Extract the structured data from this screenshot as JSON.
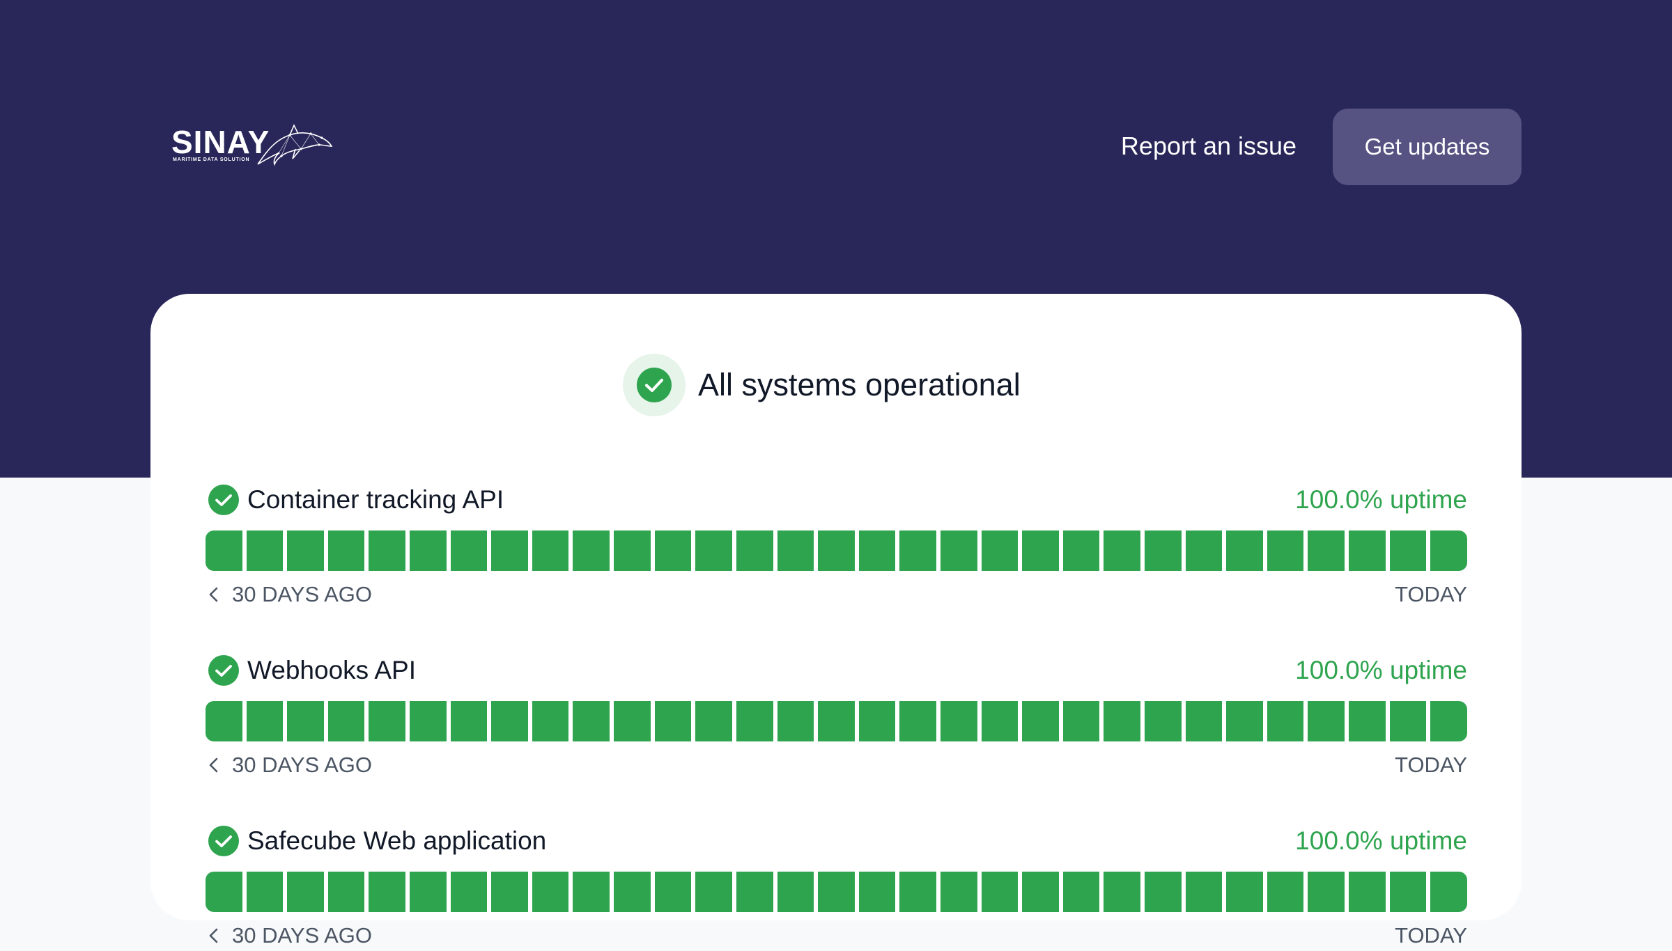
{
  "header": {
    "logo_text": "SINAY",
    "logo_tagline": "MARITIME DATA SOLUTION",
    "report_label": "Report an issue",
    "updates_label": "Get updates"
  },
  "summary": {
    "title": "All systems operational"
  },
  "colors": {
    "header_bg": "#292659",
    "operational": "#2fa44f",
    "button_bg": "#565383"
  },
  "components": [
    {
      "name": "Container tracking API",
      "uptime": "100.0% uptime",
      "status": "operational",
      "start_label": "30 DAYS AGO",
      "end_label": "TODAY",
      "days": [
        "operational",
        "operational",
        "operational",
        "operational",
        "operational",
        "operational",
        "operational",
        "operational",
        "operational",
        "operational",
        "operational",
        "operational",
        "operational",
        "operational",
        "operational",
        "operational",
        "operational",
        "operational",
        "operational",
        "operational",
        "operational",
        "operational",
        "operational",
        "operational",
        "operational",
        "operational",
        "operational",
        "operational",
        "operational",
        "operational",
        "operational"
      ]
    },
    {
      "name": "Webhooks API",
      "uptime": "100.0% uptime",
      "status": "operational",
      "start_label": "30 DAYS AGO",
      "end_label": "TODAY",
      "days": [
        "operational",
        "operational",
        "operational",
        "operational",
        "operational",
        "operational",
        "operational",
        "operational",
        "operational",
        "operational",
        "operational",
        "operational",
        "operational",
        "operational",
        "operational",
        "operational",
        "operational",
        "operational",
        "operational",
        "operational",
        "operational",
        "operational",
        "operational",
        "operational",
        "operational",
        "operational",
        "operational",
        "operational",
        "operational",
        "operational",
        "operational"
      ]
    },
    {
      "name": "Safecube Web application",
      "uptime": "100.0% uptime",
      "status": "operational",
      "start_label": "30 DAYS AGO",
      "end_label": "TODAY",
      "days": [
        "operational",
        "operational",
        "operational",
        "operational",
        "operational",
        "operational",
        "operational",
        "operational",
        "operational",
        "operational",
        "operational",
        "operational",
        "operational",
        "operational",
        "operational",
        "operational",
        "operational",
        "operational",
        "operational",
        "operational",
        "operational",
        "operational",
        "operational",
        "operational",
        "operational",
        "operational",
        "operational",
        "operational",
        "operational",
        "operational",
        "operational"
      ]
    }
  ]
}
